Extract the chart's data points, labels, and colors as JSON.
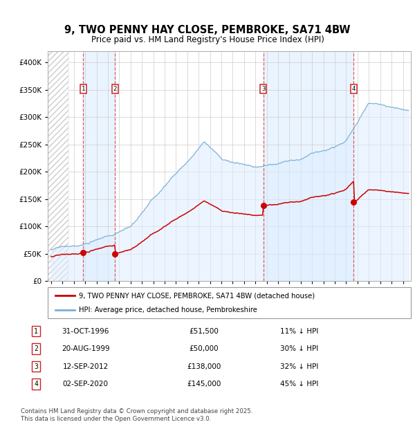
{
  "title": "9, TWO PENNY HAY CLOSE, PEMBROKE, SA71 4BW",
  "subtitle": "Price paid vs. HM Land Registry's House Price Index (HPI)",
  "legend_line1": "9, TWO PENNY HAY CLOSE, PEMBROKE, SA71 4BW (detached house)",
  "legend_line2": "HPI: Average price, detached house, Pembrokeshire",
  "footnote1": "Contains HM Land Registry data © Crown copyright and database right 2025.",
  "footnote2": "This data is licensed under the Open Government Licence v3.0.",
  "sale_color": "#cc0000",
  "hpi_color": "#7aaed4",
  "sale_points": [
    {
      "date_year": 1996.833,
      "price": 51500,
      "label": "1"
    },
    {
      "date_year": 1999.633,
      "price": 50000,
      "label": "2"
    },
    {
      "date_year": 2012.7,
      "price": 138000,
      "label": "3"
    },
    {
      "date_year": 2020.67,
      "price": 145000,
      "label": "4"
    }
  ],
  "table_rows": [
    {
      "num": "1",
      "date": "31-OCT-1996",
      "price": "£51,500",
      "pct": "11% ↓ HPI"
    },
    {
      "num": "2",
      "date": "20-AUG-1999",
      "price": "£50,000",
      "pct": "30% ↓ HPI"
    },
    {
      "num": "3",
      "date": "12-SEP-2012",
      "price": "£138,000",
      "pct": "32% ↓ HPI"
    },
    {
      "num": "4",
      "date": "02-SEP-2020",
      "price": "£145,000",
      "pct": "45% ↓ HPI"
    }
  ],
  "yticks": [
    0,
    50000,
    100000,
    150000,
    200000,
    250000,
    300000,
    350000,
    400000
  ],
  "ytick_labels": [
    "£0",
    "£50K",
    "£100K",
    "£150K",
    "£200K",
    "£250K",
    "£300K",
    "£350K",
    "£400K"
  ],
  "xlim_start": 1993.7,
  "xlim_end": 2025.7,
  "hatch_end": 1995.5
}
